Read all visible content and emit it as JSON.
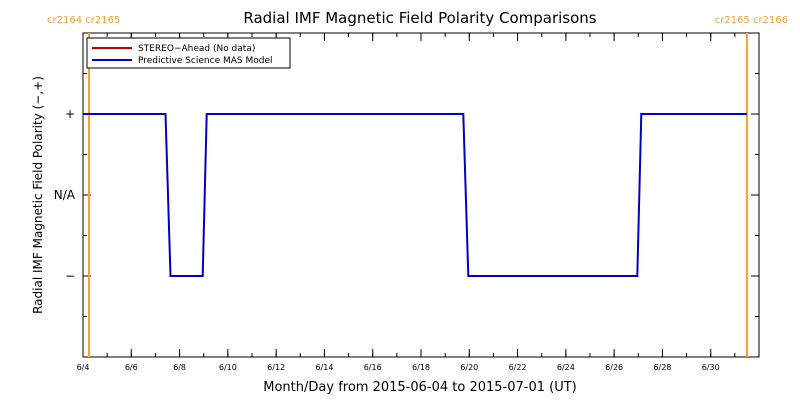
{
  "colors": {
    "stereo_series": "#c00000",
    "model_series": "#0000c0",
    "carrington_marker": "#f5a030",
    "frame": "#000000"
  },
  "chart_data": {
    "type": "line",
    "title": "Radial IMF Magnetic Field Polarity Comparisons",
    "xlabel": "Month/Day from 2015-06-04 to 2015-07-01 (UT)",
    "ylabel": "Radial IMF Magnetic Field Polarity (−,+)",
    "xlim": [
      "2015-06-04",
      "2015-07-02"
    ],
    "ylim": [
      -2,
      2
    ],
    "grid": false,
    "legend_position": "top-left",
    "x_ticks": [
      {
        "date": "2015-06-04",
        "label": "6/4"
      },
      {
        "date": "2015-06-06",
        "label": "6/6"
      },
      {
        "date": "2015-06-08",
        "label": "6/8"
      },
      {
        "date": "2015-06-10",
        "label": "6/10"
      },
      {
        "date": "2015-06-12",
        "label": "6/12"
      },
      {
        "date": "2015-06-14",
        "label": "6/14"
      },
      {
        "date": "2015-06-16",
        "label": "6/16"
      },
      {
        "date": "2015-06-18",
        "label": "6/18"
      },
      {
        "date": "2015-06-20",
        "label": "6/20"
      },
      {
        "date": "2015-06-22",
        "label": "6/22"
      },
      {
        "date": "2015-06-24",
        "label": "6/24"
      },
      {
        "date": "2015-06-26",
        "label": "6/26"
      },
      {
        "date": "2015-06-28",
        "label": "6/28"
      },
      {
        "date": "2015-06-30",
        "label": "6/30"
      }
    ],
    "y_ticks": [
      {
        "value": 1,
        "label": "+"
      },
      {
        "value": 0,
        "label": "N/A"
      },
      {
        "value": -1,
        "label": "−"
      }
    ],
    "series": [
      {
        "name": "STEREO−Ahead (No data)",
        "color": "#c00000",
        "x": [],
        "y": []
      },
      {
        "name": "Predictive Science MAS Model",
        "color": "#0000c0",
        "x": [
          "2015-06-04T00:00",
          "2015-06-07T10:00",
          "2015-06-07T15:00",
          "2015-06-08T23:00",
          "2015-06-09T03:00",
          "2015-06-19T18:00",
          "2015-06-19T23:00",
          "2015-06-26T23:00",
          "2015-06-27T03:00",
          "2015-07-01T12:00"
        ],
        "y": [
          1,
          1,
          -1,
          -1,
          1,
          1,
          -1,
          -1,
          1,
          1
        ]
      }
    ],
    "carrington_markers": [
      {
        "date": "2015-06-04T06:00",
        "label": "cr2164 cr2165"
      },
      {
        "date": "2015-07-01T12:00",
        "label": "cr2165 cr2166"
      }
    ]
  }
}
